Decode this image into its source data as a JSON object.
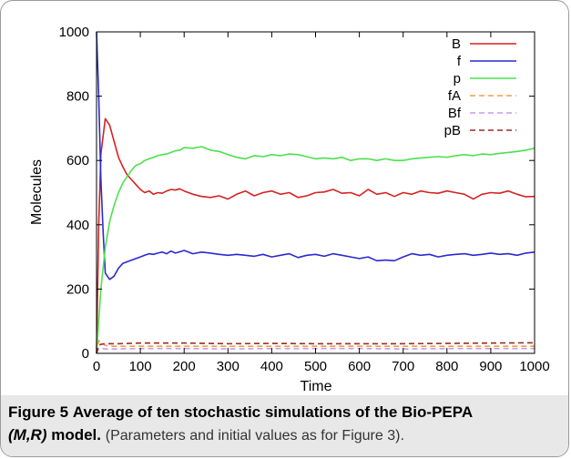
{
  "chart_data": {
    "type": "line",
    "xlabel": "Time",
    "ylabel": "Molecules",
    "xlim": [
      0,
      1000
    ],
    "ylim": [
      0,
      1000
    ],
    "xticks": [
      0,
      100,
      200,
      300,
      400,
      500,
      600,
      700,
      800,
      900,
      1000
    ],
    "yticks": [
      0,
      200,
      400,
      600,
      800,
      1000
    ],
    "legend_position": "top-right",
    "grid": false,
    "series": [
      {
        "name": "B",
        "color": "#d62222",
        "dash": "solid",
        "x": [
          0,
          5,
          10,
          20,
          30,
          40,
          50,
          60,
          70,
          80,
          90,
          100,
          110,
          120,
          130,
          140,
          150,
          160,
          170,
          180,
          190,
          200,
          220,
          240,
          260,
          280,
          300,
          320,
          340,
          360,
          380,
          400,
          420,
          440,
          460,
          480,
          500,
          520,
          540,
          560,
          580,
          600,
          620,
          640,
          660,
          680,
          700,
          720,
          740,
          760,
          780,
          800,
          820,
          840,
          860,
          880,
          900,
          920,
          940,
          960,
          980,
          1000
        ],
        "y": [
          0,
          400,
          620,
          730,
          710,
          660,
          610,
          580,
          555,
          540,
          525,
          510,
          500,
          505,
          495,
          500,
          498,
          505,
          510,
          508,
          512,
          505,
          495,
          488,
          485,
          490,
          480,
          495,
          505,
          490,
          500,
          505,
          495,
          500,
          485,
          490,
          500,
          502,
          510,
          498,
          500,
          490,
          510,
          495,
          500,
          488,
          500,
          495,
          505,
          500,
          498,
          505,
          500,
          495,
          480,
          495,
          500,
          498,
          505,
          495,
          487,
          488
        ]
      },
      {
        "name": "f",
        "color": "#2a2ad0",
        "dash": "solid",
        "x": [
          0,
          5,
          10,
          15,
          20,
          30,
          40,
          50,
          60,
          70,
          80,
          90,
          100,
          110,
          120,
          130,
          140,
          150,
          160,
          170,
          180,
          190,
          200,
          220,
          240,
          260,
          280,
          300,
          320,
          340,
          360,
          380,
          400,
          420,
          440,
          460,
          480,
          500,
          520,
          540,
          560,
          580,
          600,
          620,
          640,
          660,
          680,
          700,
          720,
          740,
          760,
          780,
          800,
          820,
          840,
          860,
          880,
          900,
          920,
          940,
          960,
          980,
          1000
        ],
        "y": [
          1000,
          800,
          540,
          380,
          250,
          230,
          240,
          265,
          280,
          285,
          290,
          295,
          300,
          305,
          310,
          308,
          312,
          315,
          310,
          318,
          312,
          316,
          320,
          310,
          315,
          312,
          308,
          305,
          308,
          305,
          302,
          308,
          300,
          305,
          310,
          298,
          305,
          308,
          302,
          310,
          305,
          300,
          295,
          300,
          288,
          290,
          288,
          300,
          310,
          305,
          308,
          300,
          305,
          308,
          310,
          305,
          308,
          312,
          308,
          310,
          305,
          312,
          315
        ]
      },
      {
        "name": "p",
        "color": "#4ee04e",
        "dash": "solid",
        "x": [
          0,
          5,
          10,
          20,
          30,
          40,
          50,
          60,
          70,
          80,
          90,
          100,
          110,
          120,
          130,
          140,
          150,
          160,
          170,
          180,
          190,
          200,
          220,
          240,
          260,
          280,
          300,
          320,
          340,
          360,
          380,
          400,
          420,
          440,
          460,
          480,
          500,
          520,
          540,
          560,
          580,
          600,
          620,
          640,
          660,
          680,
          700,
          720,
          740,
          760,
          780,
          800,
          820,
          840,
          860,
          880,
          900,
          920,
          940,
          960,
          980,
          1000
        ],
        "y": [
          0,
          100,
          200,
          330,
          410,
          460,
          500,
          530,
          550,
          570,
          585,
          590,
          600,
          605,
          610,
          615,
          618,
          620,
          625,
          630,
          632,
          640,
          638,
          643,
          632,
          628,
          618,
          610,
          605,
          615,
          612,
          618,
          615,
          620,
          618,
          612,
          605,
          608,
          605,
          610,
          600,
          605,
          605,
          600,
          605,
          600,
          600,
          605,
          608,
          610,
          612,
          610,
          615,
          618,
          615,
          620,
          618,
          622,
          625,
          628,
          632,
          638
        ]
      },
      {
        "name": "fA",
        "color": "#f0a040",
        "dash": "dashed",
        "x": [
          0,
          5,
          10,
          20,
          30,
          50,
          100,
          200,
          300,
          400,
          500,
          600,
          700,
          800,
          900,
          1000
        ],
        "y": [
          0,
          40,
          35,
          25,
          22,
          22,
          22,
          22,
          22,
          22,
          22,
          22,
          22,
          22,
          22,
          22
        ]
      },
      {
        "name": "Bf",
        "color": "#c89ae8",
        "dash": "dashed",
        "x": [
          0,
          5,
          10,
          20,
          30,
          50,
          100,
          200,
          300,
          400,
          500,
          600,
          700,
          800,
          900,
          1000
        ],
        "y": [
          0,
          15,
          15,
          14,
          13,
          14,
          15,
          15,
          14,
          15,
          15,
          15,
          14,
          15,
          15,
          15
        ]
      },
      {
        "name": "pB",
        "color": "#9a2a2a",
        "dash": "dashed",
        "x": [
          0,
          5,
          10,
          20,
          30,
          50,
          100,
          200,
          300,
          400,
          500,
          600,
          700,
          800,
          900,
          1000
        ],
        "y": [
          0,
          25,
          28,
          30,
          30,
          30,
          32,
          32,
          30,
          31,
          30,
          30,
          30,
          31,
          32,
          33
        ]
      }
    ]
  },
  "caption": {
    "figure_label": "Figure 5",
    "title_text": "Average of ten stochastic simulations of the Bio-PEPA",
    "title_italic": "(M,R)",
    "title_end": "model.",
    "note": "(Parameters and initial values as for Figure 3)."
  }
}
